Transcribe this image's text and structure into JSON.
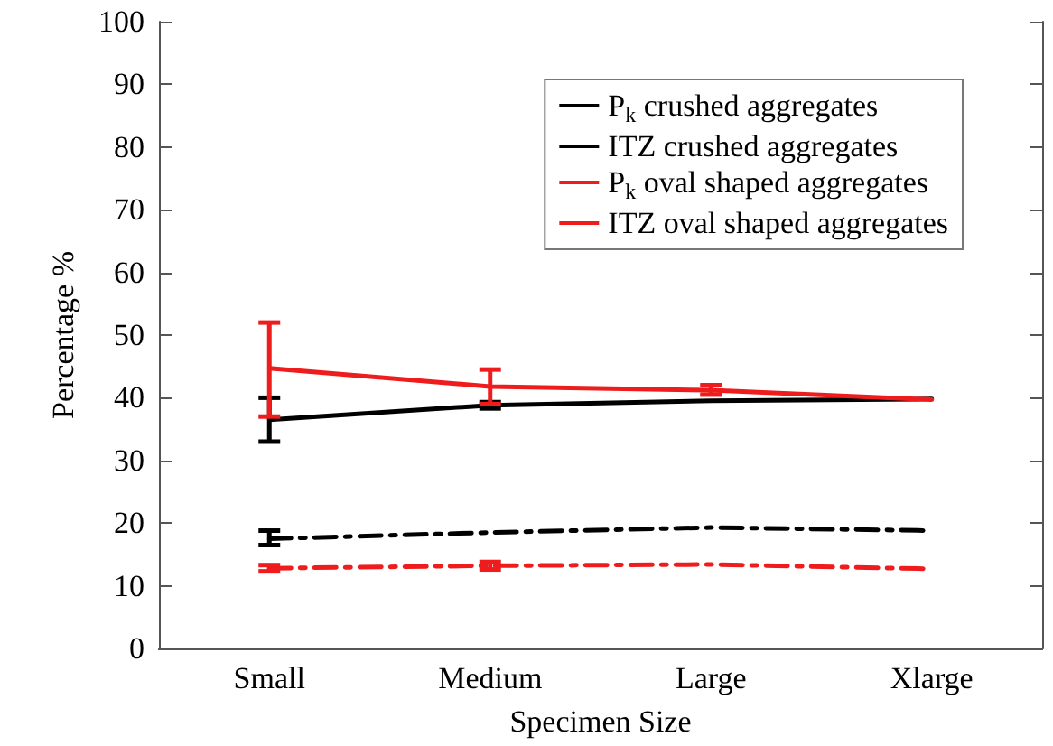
{
  "chart_data": {
    "type": "line",
    "xlabel": "Specimen Size",
    "ylabel": "Percentage %",
    "categories": [
      "Small",
      "Medium",
      "Large",
      "Xlarge"
    ],
    "ylim": [
      0,
      100
    ],
    "yticks": [
      0,
      10,
      20,
      30,
      40,
      50,
      60,
      70,
      80,
      90,
      100
    ],
    "grid": false,
    "legend": "top right",
    "marker": "none",
    "series": [
      {
        "name": "P$_{k}$ crushed aggregates",
        "color": "#000000",
        "line_style": "solid",
        "values": [
          36.5,
          38.8,
          39.5,
          39.8
        ],
        "errors": [
          [
            33,
            40
          ],
          [
            38.3,
            39.3
          ],
          null,
          null
        ]
      },
      {
        "name": "ITZ crushed aggregates",
        "color": "#000000",
        "line_style": "dashed",
        "values": [
          17.5,
          18.5,
          19.3,
          18.8
        ],
        "errors": [
          [
            16.5,
            18.8
          ],
          null,
          null,
          null
        ]
      },
      {
        "name": "P$_{k}$ oval shaped aggregates",
        "color": "#ee1c1c",
        "line_style": "solid",
        "values": [
          44.7,
          41.8,
          41.2,
          39.7
        ],
        "errors": [
          [
            37,
            52
          ],
          [
            39,
            44.5
          ],
          [
            40.5,
            42
          ],
          null
        ]
      },
      {
        "name": "ITZ oval shaped aggregates",
        "color": "#ee1c1c",
        "line_style": "dashed",
        "values": [
          12.8,
          13.2,
          13.4,
          12.7
        ],
        "errors": [
          [
            12.3,
            13.3
          ],
          [
            12.6,
            13.8
          ],
          null,
          null
        ]
      }
    ]
  }
}
